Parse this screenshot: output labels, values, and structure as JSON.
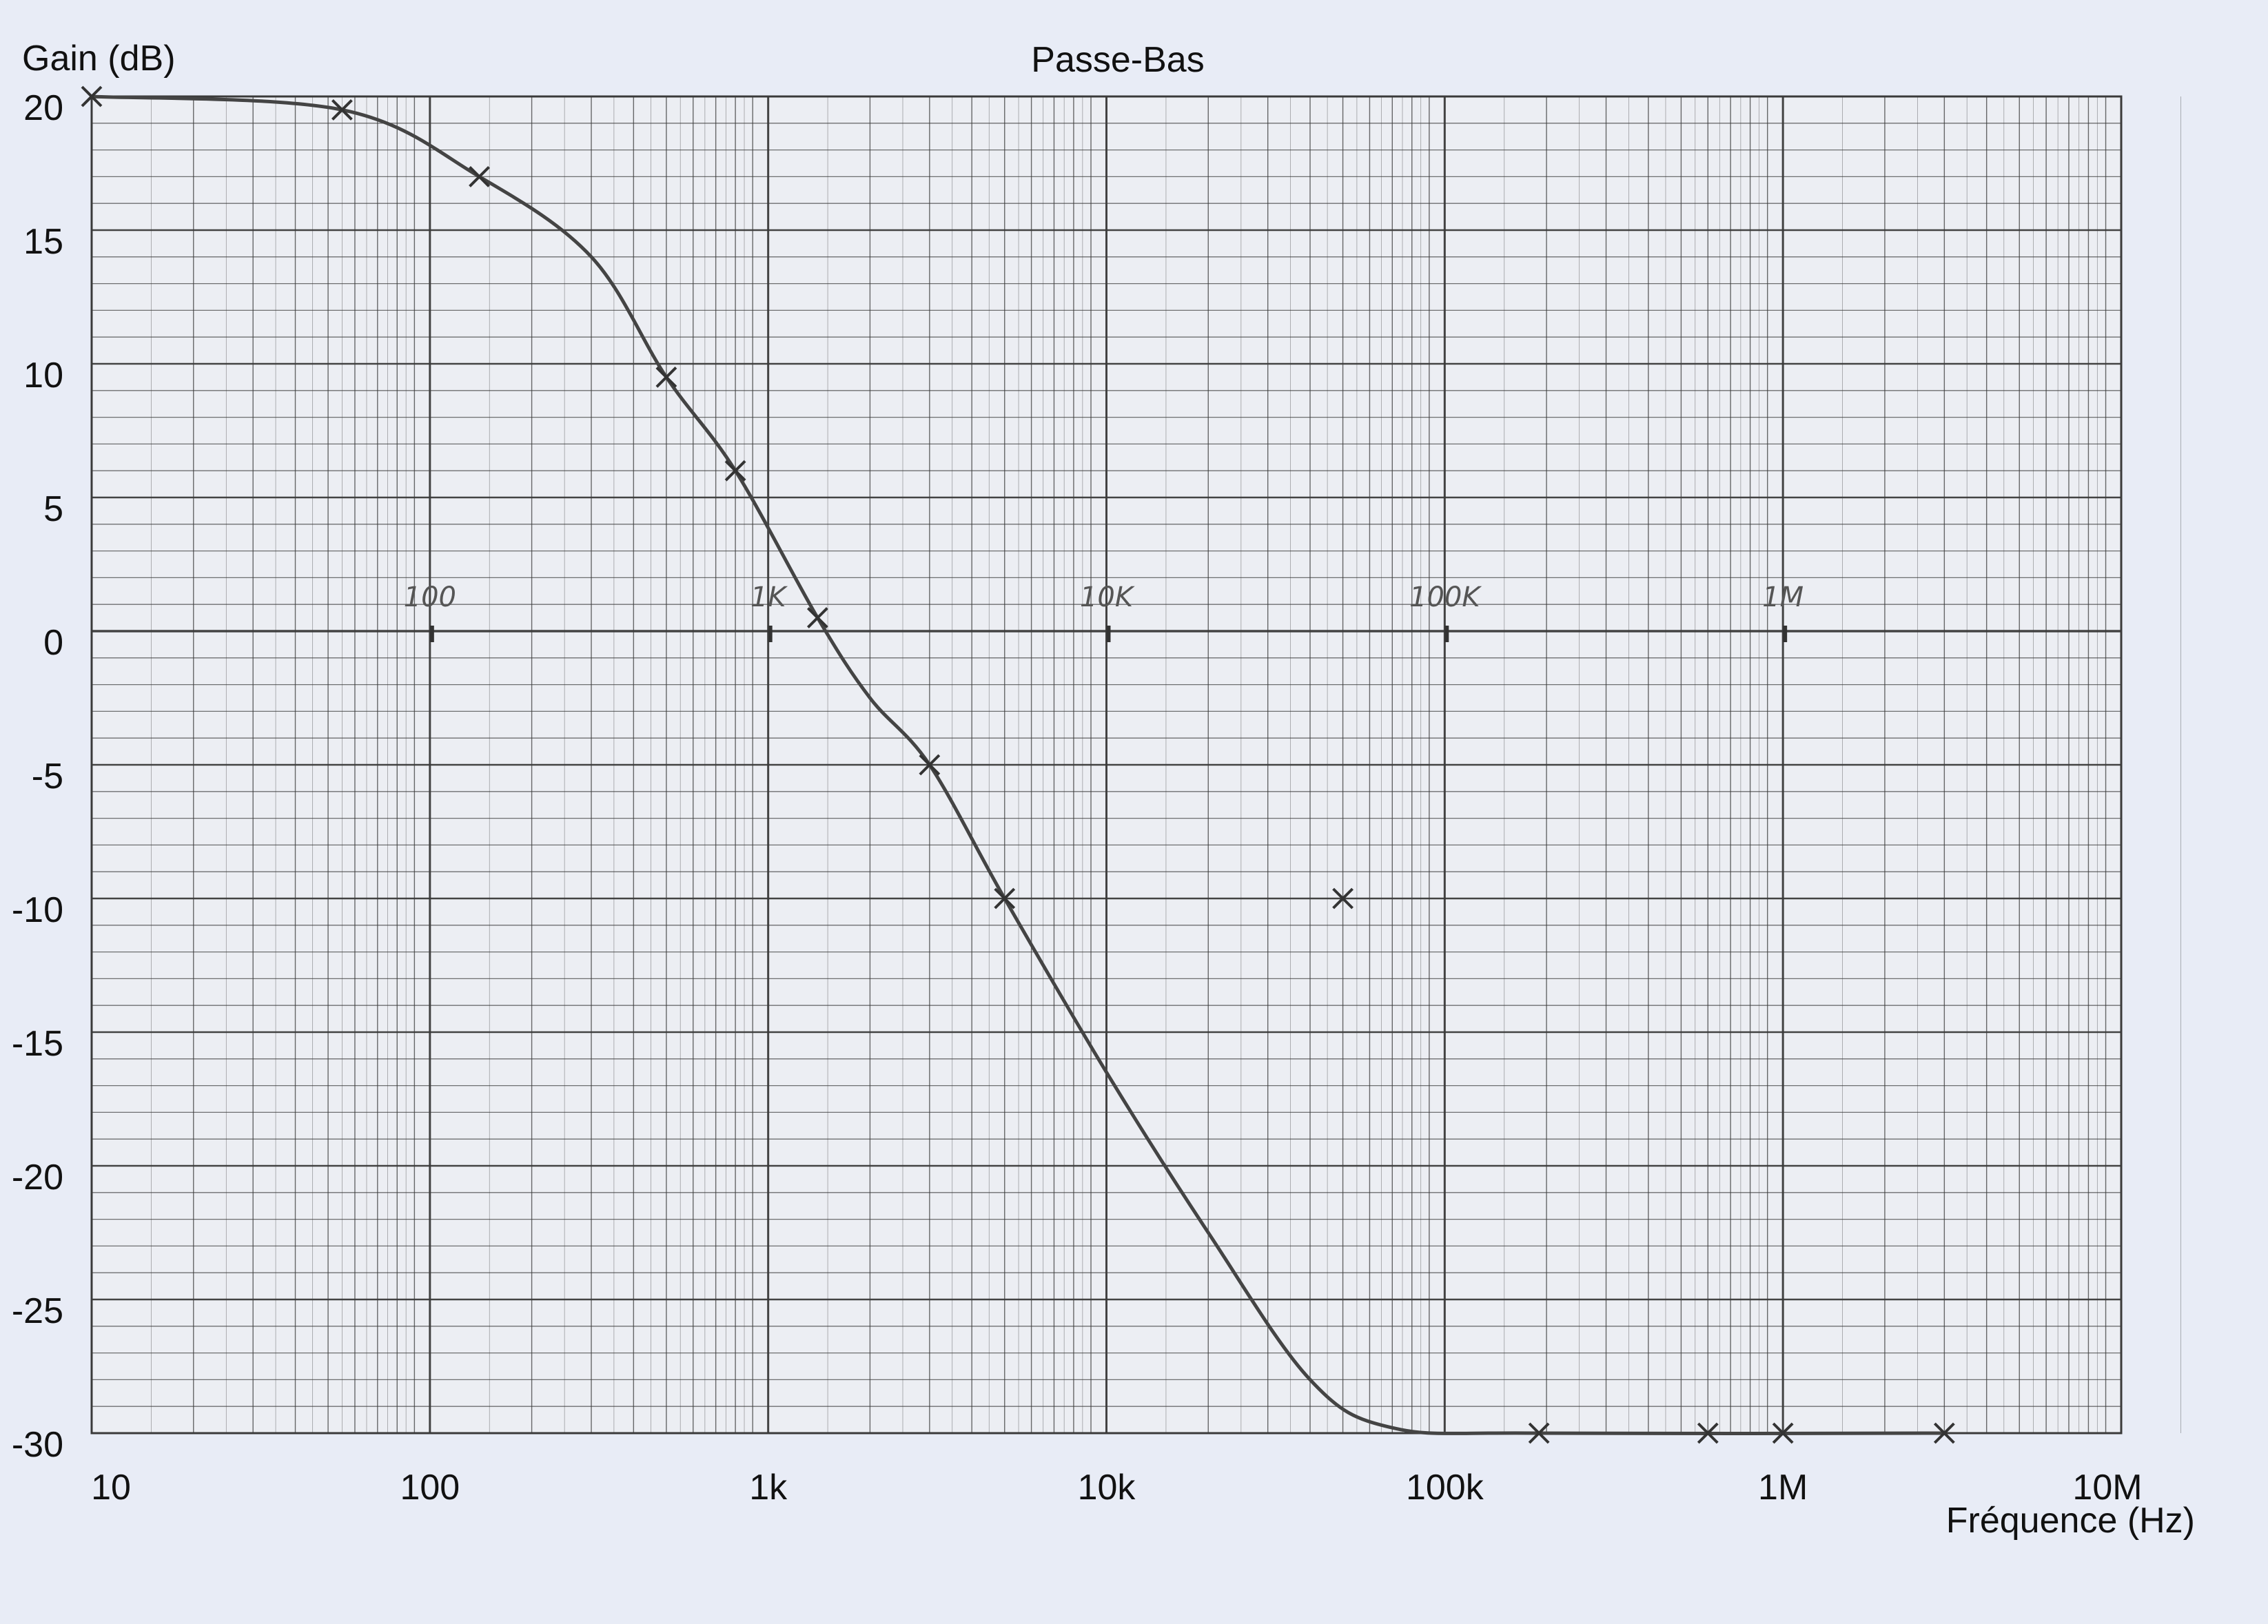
{
  "chart_data": {
    "type": "line",
    "title": "Passe-Bas",
    "xlabel": "Fréquence (Hz)",
    "ylabel": "Gain (dB)",
    "x_scale": "log",
    "xlim": [
      10,
      10000000
    ],
    "ylim": [
      -30,
      20
    ],
    "grid": true,
    "legend": "none",
    "x_ticks": [
      {
        "value": 10,
        "label": "10"
      },
      {
        "value": 100,
        "label": "100"
      },
      {
        "value": 1000,
        "label": "1k"
      },
      {
        "value": 10000,
        "label": "10k"
      },
      {
        "value": 100000,
        "label": "100k"
      },
      {
        "value": 1000000,
        "label": "1M"
      },
      {
        "value": 10000000,
        "label": "10M"
      }
    ],
    "y_ticks": [
      {
        "value": 20,
        "label": "20"
      },
      {
        "value": 15,
        "label": "15"
      },
      {
        "value": 10,
        "label": "10"
      },
      {
        "value": 5,
        "label": "5"
      },
      {
        "value": 0,
        "label": "0"
      },
      {
        "value": -5,
        "label": "-5"
      },
      {
        "value": -10,
        "label": "-10"
      },
      {
        "value": -15,
        "label": "-15"
      },
      {
        "value": -20,
        "label": "-20"
      },
      {
        "value": -25,
        "label": "-25"
      },
      {
        "value": -30,
        "label": "-30"
      }
    ],
    "handwritten_axis_marks": [
      {
        "value": 100,
        "label": "100"
      },
      {
        "value": 1000,
        "label": "1K"
      },
      {
        "value": 10000,
        "label": "10K"
      },
      {
        "value": 100000,
        "label": "100K"
      },
      {
        "value": 1000000,
        "label": "1M"
      }
    ],
    "measured_points": [
      {
        "x": 10,
        "y": 20
      },
      {
        "x": 55,
        "y": 19.5
      },
      {
        "x": 140,
        "y": 17
      },
      {
        "x": 500,
        "y": 9.5
      },
      {
        "x": 800,
        "y": 6
      },
      {
        "x": 1400,
        "y": 0.5
      },
      {
        "x": 3000,
        "y": -5
      },
      {
        "x": 5000,
        "y": -10
      },
      {
        "x": 50000,
        "y": -10
      },
      {
        "x": 190000,
        "y": -30
      },
      {
        "x": 600000,
        "y": -30
      },
      {
        "x": 1000000,
        "y": -30
      },
      {
        "x": 3000000,
        "y": -30
      }
    ],
    "curve": [
      {
        "x": 10,
        "y": 20
      },
      {
        "x": 55,
        "y": 19.5
      },
      {
        "x": 140,
        "y": 17
      },
      {
        "x": 300,
        "y": 14
      },
      {
        "x": 500,
        "y": 9.5
      },
      {
        "x": 800,
        "y": 6
      },
      {
        "x": 1400,
        "y": 0.5
      },
      {
        "x": 2000,
        "y": -2.5
      },
      {
        "x": 3000,
        "y": -5
      },
      {
        "x": 5000,
        "y": -10
      },
      {
        "x": 10000,
        "y": -16.5
      },
      {
        "x": 20000,
        "y": -22.5
      },
      {
        "x": 40000,
        "y": -28
      },
      {
        "x": 70000,
        "y": -29.8
      },
      {
        "x": 190000,
        "y": -30
      },
      {
        "x": 3000000,
        "y": -30
      }
    ]
  },
  "colors": {
    "background": "#e8ecf6",
    "paper": "#eceef3",
    "grid": "#3a3a3a",
    "curve": "#444444"
  }
}
